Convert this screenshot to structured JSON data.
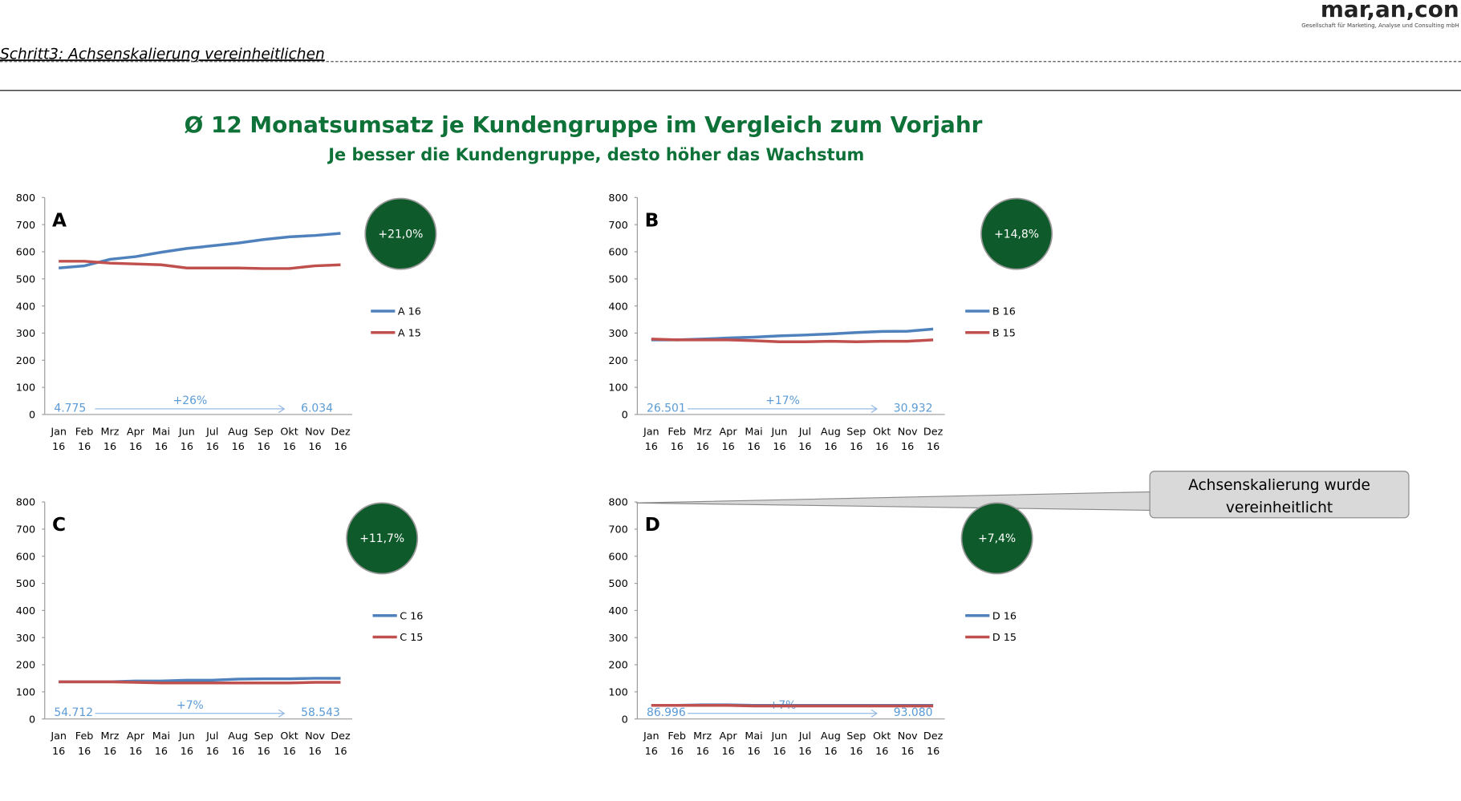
{
  "slide": {
    "step": "Schritt3: Achsenskalierung vereinheitlichen",
    "logo": "mar,an,con",
    "logo_sub": "Gesellschaft für Marketing, Analyse und Consulting mbH",
    "title": "Ø 12 Monatsumsatz je Kundengruppe im Vergleich zum Vorjahr",
    "subtitle": "Je besser die Kundengruppe, desto höher das Wachstum",
    "callout": [
      "Achsenskalierung wurde",
      "vereinheitlicht"
    ]
  },
  "chart_data": [
    {
      "type": "line",
      "title": "A",
      "growth": "+21,0%",
      "start": "4.775",
      "end": "6.034",
      "change": "+26%",
      "categories": [
        "Jan 16",
        "Feb 16",
        "Mrz 16",
        "Apr 16",
        "Mai 16",
        "Jun 16",
        "Jul 16",
        "Aug 16",
        "Sep 16",
        "Okt 16",
        "Nov 16",
        "Dez 16"
      ],
      "series": [
        {
          "name": "A 16",
          "color": "#4f81bd",
          "values": [
            540,
            548,
            572,
            582,
            598,
            612,
            622,
            632,
            645,
            655,
            660,
            668
          ]
        },
        {
          "name": "A 15",
          "color": "#c0504d",
          "values": [
            565,
            565,
            558,
            555,
            552,
            540,
            540,
            540,
            538,
            538,
            548,
            552
          ]
        }
      ],
      "ylim": [
        0,
        800
      ],
      "yticks": [
        0,
        100,
        200,
        300,
        400,
        500,
        600,
        700,
        800
      ]
    },
    {
      "type": "line",
      "title": "B",
      "growth": "+14,8%",
      "start": "26.501",
      "end": "30.932",
      "change": "+17%",
      "categories": [
        "Jan 16",
        "Feb 16",
        "Mrz 16",
        "Apr 16",
        "Mai 16",
        "Jun 16",
        "Jul 16",
        "Aug 16",
        "Sep 16",
        "Okt 16",
        "Nov 16",
        "Dez 16"
      ],
      "series": [
        {
          "name": "B 16",
          "color": "#4f81bd",
          "values": [
            275,
            275,
            278,
            282,
            285,
            290,
            293,
            297,
            302,
            306,
            307,
            315
          ]
        },
        {
          "name": "B 15",
          "color": "#c0504d",
          "values": [
            278,
            275,
            275,
            275,
            272,
            268,
            268,
            270,
            268,
            270,
            270,
            275
          ]
        }
      ],
      "ylim": [
        0,
        800
      ],
      "yticks": [
        0,
        100,
        200,
        300,
        400,
        500,
        600,
        700,
        800
      ]
    },
    {
      "type": "line",
      "title": "C",
      "growth": "+11,7%",
      "start": "54.712",
      "end": "58.543",
      "change": "+7%",
      "categories": [
        "Jan 16",
        "Feb 16",
        "Mrz 16",
        "Apr 16",
        "Mai 16",
        "Jun 16",
        "Jul 16",
        "Aug 16",
        "Sep 16",
        "Okt 16",
        "Nov 16",
        "Dez 16"
      ],
      "series": [
        {
          "name": "C 16",
          "color": "#4f81bd",
          "values": [
            137,
            137,
            137,
            140,
            140,
            143,
            143,
            147,
            148,
            148,
            150,
            150
          ]
        },
        {
          "name": "C 15",
          "color": "#c0504d",
          "values": [
            137,
            137,
            137,
            135,
            133,
            133,
            133,
            133,
            133,
            133,
            135,
            135
          ]
        }
      ],
      "ylim": [
        0,
        800
      ],
      "yticks": [
        0,
        100,
        200,
        300,
        400,
        500,
        600,
        700,
        800
      ]
    },
    {
      "type": "line",
      "title": "D",
      "growth": "+7,4%",
      "start": "86.996",
      "end": "93.080",
      "change": "+7%",
      "categories": [
        "Jan 16",
        "Feb 16",
        "Mrz 16",
        "Apr 16",
        "Mai 16",
        "Jun 16",
        "Jul 16",
        "Aug 16",
        "Sep 16",
        "Okt 16",
        "Nov 16",
        "Dez 16"
      ],
      "series": [
        {
          "name": "D 16",
          "color": "#4f81bd",
          "values": [
            50,
            50,
            52,
            52,
            50,
            50,
            50,
            50,
            50,
            50,
            50,
            50
          ]
        },
        {
          "name": "D 15",
          "color": "#c0504d",
          "values": [
            50,
            50,
            50,
            50,
            48,
            48,
            48,
            48,
            48,
            48,
            48,
            48
          ]
        }
      ],
      "ylim": [
        0,
        800
      ],
      "yticks": [
        0,
        100,
        200,
        300,
        400,
        500,
        600,
        700,
        800
      ]
    }
  ]
}
